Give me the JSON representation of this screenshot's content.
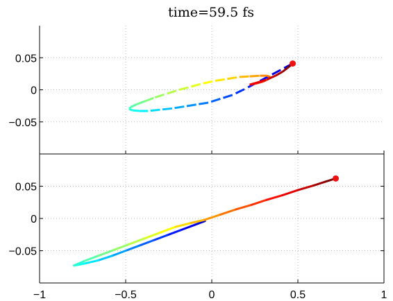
{
  "chart_data": [
    {
      "type": "line",
      "title": "time=59.5 fs",
      "xlabel": "",
      "ylabel": "",
      "xlim": [
        -1,
        1
      ],
      "ylim": [
        -0.1,
        0.1
      ],
      "xticks": [
        -1,
        -0.5,
        0,
        0.5,
        1
      ],
      "yticks": [
        -0.05,
        0,
        0.05
      ],
      "ytick_labels": [
        "−0.05",
        "0",
        "0.05"
      ],
      "grid": true,
      "line_style": "dashed",
      "color_map": "jet",
      "series": [
        {
          "x": [
            0.47,
            0.4,
            0.33,
            0.26,
            0.19,
            0.12,
            0.05,
            -0.02,
            -0.09,
            -0.16,
            -0.23,
            -0.3,
            -0.37,
            -0.42,
            -0.46,
            -0.48,
            -0.47,
            -0.44,
            -0.39,
            -0.33,
            -0.26,
            -0.19,
            -0.12,
            -0.05,
            0.02,
            0.09,
            0.16,
            0.22,
            0.28,
            0.32,
            0.34,
            0.33,
            0.3,
            0.26,
            0.22,
            0.26,
            0.32,
            0.37,
            0.41,
            0.44,
            0.47
          ],
          "y": [
            0.041,
            0.031,
            0.021,
            0.011,
            0.001,
            -0.008,
            -0.014,
            -0.02,
            -0.023,
            -0.026,
            -0.029,
            -0.031,
            -0.033,
            -0.033,
            -0.032,
            -0.03,
            -0.027,
            -0.023,
            -0.018,
            -0.012,
            -0.006,
            0.0,
            0.005,
            0.01,
            0.014,
            0.017,
            0.02,
            0.021,
            0.022,
            0.022,
            0.02,
            0.017,
            0.013,
            0.01,
            0.008,
            0.011,
            0.016,
            0.022,
            0.028,
            0.034,
            0.041
          ]
        }
      ],
      "marker": {
        "x": 0.47,
        "y": 0.041,
        "color": "#ee1111"
      }
    },
    {
      "type": "line",
      "title": "",
      "xlabel": "",
      "ylabel": "",
      "xlim": [
        -1,
        1
      ],
      "ylim": [
        -0.1,
        0.1
      ],
      "xticks": [
        -1,
        -0.5,
        0,
        0.5,
        1
      ],
      "xtick_labels": [
        "−1",
        "−0.5",
        "0",
        "0.5",
        "1"
      ],
      "yticks": [
        -0.05,
        0,
        0.05
      ],
      "ytick_labels": [
        "−0.05",
        "0",
        "0.05"
      ],
      "grid": true,
      "line_style": "solid",
      "color_map": "jet",
      "series": [
        {
          "x": [
            -0.04,
            -0.1,
            -0.18,
            -0.26,
            -0.34,
            -0.42,
            -0.5,
            -0.58,
            -0.66,
            -0.74,
            -0.8,
            -0.74,
            -0.66,
            -0.57,
            -0.48,
            -0.39,
            -0.3,
            -0.21,
            -0.12,
            -0.04,
            0.05,
            0.14,
            0.23,
            0.32,
            0.41,
            0.5,
            0.59,
            0.66,
            0.72
          ],
          "y": [
            -0.004,
            -0.01,
            -0.018,
            -0.026,
            -0.034,
            -0.042,
            -0.05,
            -0.058,
            -0.065,
            -0.07,
            -0.073,
            -0.066,
            -0.058,
            -0.049,
            -0.04,
            -0.031,
            -0.022,
            -0.013,
            -0.007,
            -0.002,
            0.006,
            0.014,
            0.021,
            0.029,
            0.036,
            0.044,
            0.051,
            0.057,
            0.062
          ]
        }
      ],
      "marker": {
        "x": 0.72,
        "y": 0.062,
        "color": "#ee1111"
      }
    }
  ]
}
